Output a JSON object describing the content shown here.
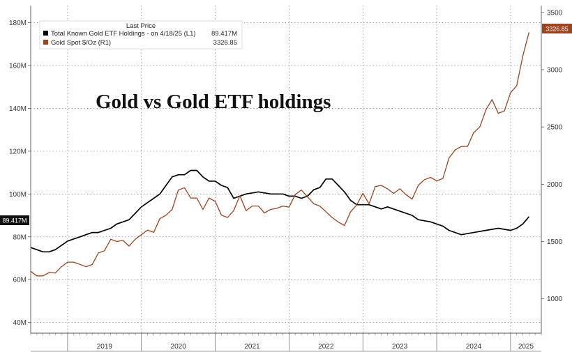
{
  "chart_data": {
    "type": "line",
    "title": "Gold vs Gold ETF holdings",
    "legend": {
      "header": "Last Price",
      "placement": "top-left",
      "entries": [
        {
          "label": "Total Known Gold ETF Holdings -  on 4/18/25  (L1)",
          "value": "89.417M",
          "color": "#000000"
        },
        {
          "label": "Gold Spot $/Oz  (R1)",
          "value": "3326.85",
          "color": "#a0421b"
        }
      ]
    },
    "x_labels": [
      "2019",
      "2020",
      "2021",
      "2022",
      "2023",
      "2024",
      "2025"
    ],
    "x_range": [
      "2018-07",
      "2025-06"
    ],
    "left_axis": {
      "ticks": [
        40,
        60,
        80,
        100,
        120,
        140,
        160,
        180
      ],
      "tick_labels": [
        "40M",
        "60M",
        "80M",
        "100M",
        "120M",
        "140M",
        "160M",
        "180M"
      ],
      "range": [
        35,
        188
      ],
      "unit": "M"
    },
    "right_axis": {
      "ticks": [
        1000,
        1500,
        2000,
        2500,
        3000,
        3500
      ],
      "tick_labels": [
        "1000",
        "1500",
        "2000",
        "2500",
        "3000",
        "3500"
      ],
      "range": [
        700,
        3560
      ]
    },
    "grid": true,
    "last_value_tags": {
      "left": "89.417M",
      "right": "3326.85"
    },
    "series": [
      {
        "name": "Total Known Gold ETF Holdings",
        "axis": "left",
        "unit": "M",
        "color": "#000000",
        "x": [
          "2018-07",
          "2018-08",
          "2018-09",
          "2018-10",
          "2018-11",
          "2018-12",
          "2019-01",
          "2019-02",
          "2019-03",
          "2019-04",
          "2019-05",
          "2019-06",
          "2019-07",
          "2019-08",
          "2019-09",
          "2019-10",
          "2019-11",
          "2019-12",
          "2020-01",
          "2020-02",
          "2020-03",
          "2020-04",
          "2020-05",
          "2020-06",
          "2020-07",
          "2020-08",
          "2020-09",
          "2020-10",
          "2020-11",
          "2020-12",
          "2021-01",
          "2021-02",
          "2021-03",
          "2021-04",
          "2021-06",
          "2021-08",
          "2021-10",
          "2021-12",
          "2022-01",
          "2022-02",
          "2022-03",
          "2022-04",
          "2022-05",
          "2022-06",
          "2022-07",
          "2022-08",
          "2022-09",
          "2022-10",
          "2022-11",
          "2022-12",
          "2023-02",
          "2023-04",
          "2023-05",
          "2023-07",
          "2023-09",
          "2023-10",
          "2023-12",
          "2024-02",
          "2024-03",
          "2024-05",
          "2024-07",
          "2024-09",
          "2024-11",
          "2025-01",
          "2025-02",
          "2025-03",
          "2025-04"
        ],
        "values": [
          75,
          74,
          73,
          73,
          74,
          76,
          78,
          79,
          80,
          81,
          82,
          82,
          83,
          84,
          86,
          87,
          88,
          91,
          94,
          96,
          98,
          100,
          104,
          108,
          109,
          109,
          111,
          111,
          108,
          106,
          106,
          104,
          103,
          98,
          100,
          101,
          100,
          100,
          99,
          99,
          98,
          99,
          102,
          103,
          107,
          107,
          104,
          101,
          97,
          95,
          95,
          93,
          94,
          92,
          90,
          88,
          87,
          85,
          83,
          81,
          82,
          83,
          84,
          83,
          84,
          86,
          89.417
        ]
      },
      {
        "name": "Gold Spot $/Oz",
        "axis": "right",
        "unit": "$/Oz",
        "color": "#a0421b",
        "x": [
          "2018-07",
          "2018-08",
          "2018-09",
          "2018-10",
          "2018-11",
          "2018-12",
          "2019-01",
          "2019-02",
          "2019-03",
          "2019-04",
          "2019-05",
          "2019-06",
          "2019-07",
          "2019-08",
          "2019-09",
          "2019-10",
          "2019-11",
          "2019-12",
          "2020-01",
          "2020-02",
          "2020-03",
          "2020-04",
          "2020-05",
          "2020-06",
          "2020-07",
          "2020-08",
          "2020-09",
          "2020-10",
          "2020-11",
          "2020-12",
          "2021-01",
          "2021-02",
          "2021-03",
          "2021-04",
          "2021-05",
          "2021-06",
          "2021-07",
          "2021-08",
          "2021-09",
          "2021-10",
          "2021-11",
          "2021-12",
          "2022-01",
          "2022-02",
          "2022-03",
          "2022-04",
          "2022-05",
          "2022-06",
          "2022-07",
          "2022-08",
          "2022-09",
          "2022-10",
          "2022-11",
          "2022-12",
          "2023-01",
          "2023-02",
          "2023-03",
          "2023-04",
          "2023-05",
          "2023-06",
          "2023-07",
          "2023-08",
          "2023-09",
          "2023-10",
          "2023-11",
          "2023-12",
          "2024-01",
          "2024-02",
          "2024-03",
          "2024-04",
          "2024-05",
          "2024-06",
          "2024-07",
          "2024-08",
          "2024-09",
          "2024-10",
          "2024-11",
          "2024-12",
          "2025-01",
          "2025-02",
          "2025-03",
          "2025-04"
        ],
        "values": [
          1240,
          1200,
          1200,
          1230,
          1225,
          1280,
          1320,
          1320,
          1300,
          1280,
          1300,
          1400,
          1420,
          1520,
          1500,
          1510,
          1460,
          1520,
          1560,
          1600,
          1580,
          1700,
          1730,
          1780,
          1950,
          1970,
          1880,
          1880,
          1780,
          1880,
          1850,
          1730,
          1710,
          1770,
          1900,
          1770,
          1810,
          1810,
          1750,
          1780,
          1790,
          1810,
          1800,
          1910,
          1950,
          1890,
          1830,
          1810,
          1760,
          1710,
          1670,
          1640,
          1760,
          1820,
          1920,
          1830,
          1980,
          1990,
          1960,
          1920,
          1960,
          1910,
          1870,
          1990,
          2040,
          2060,
          2030,
          2050,
          2230,
          2300,
          2330,
          2330,
          2450,
          2500,
          2650,
          2740,
          2620,
          2640,
          2800,
          2860,
          3120,
          3326.85
        ]
      }
    ]
  }
}
